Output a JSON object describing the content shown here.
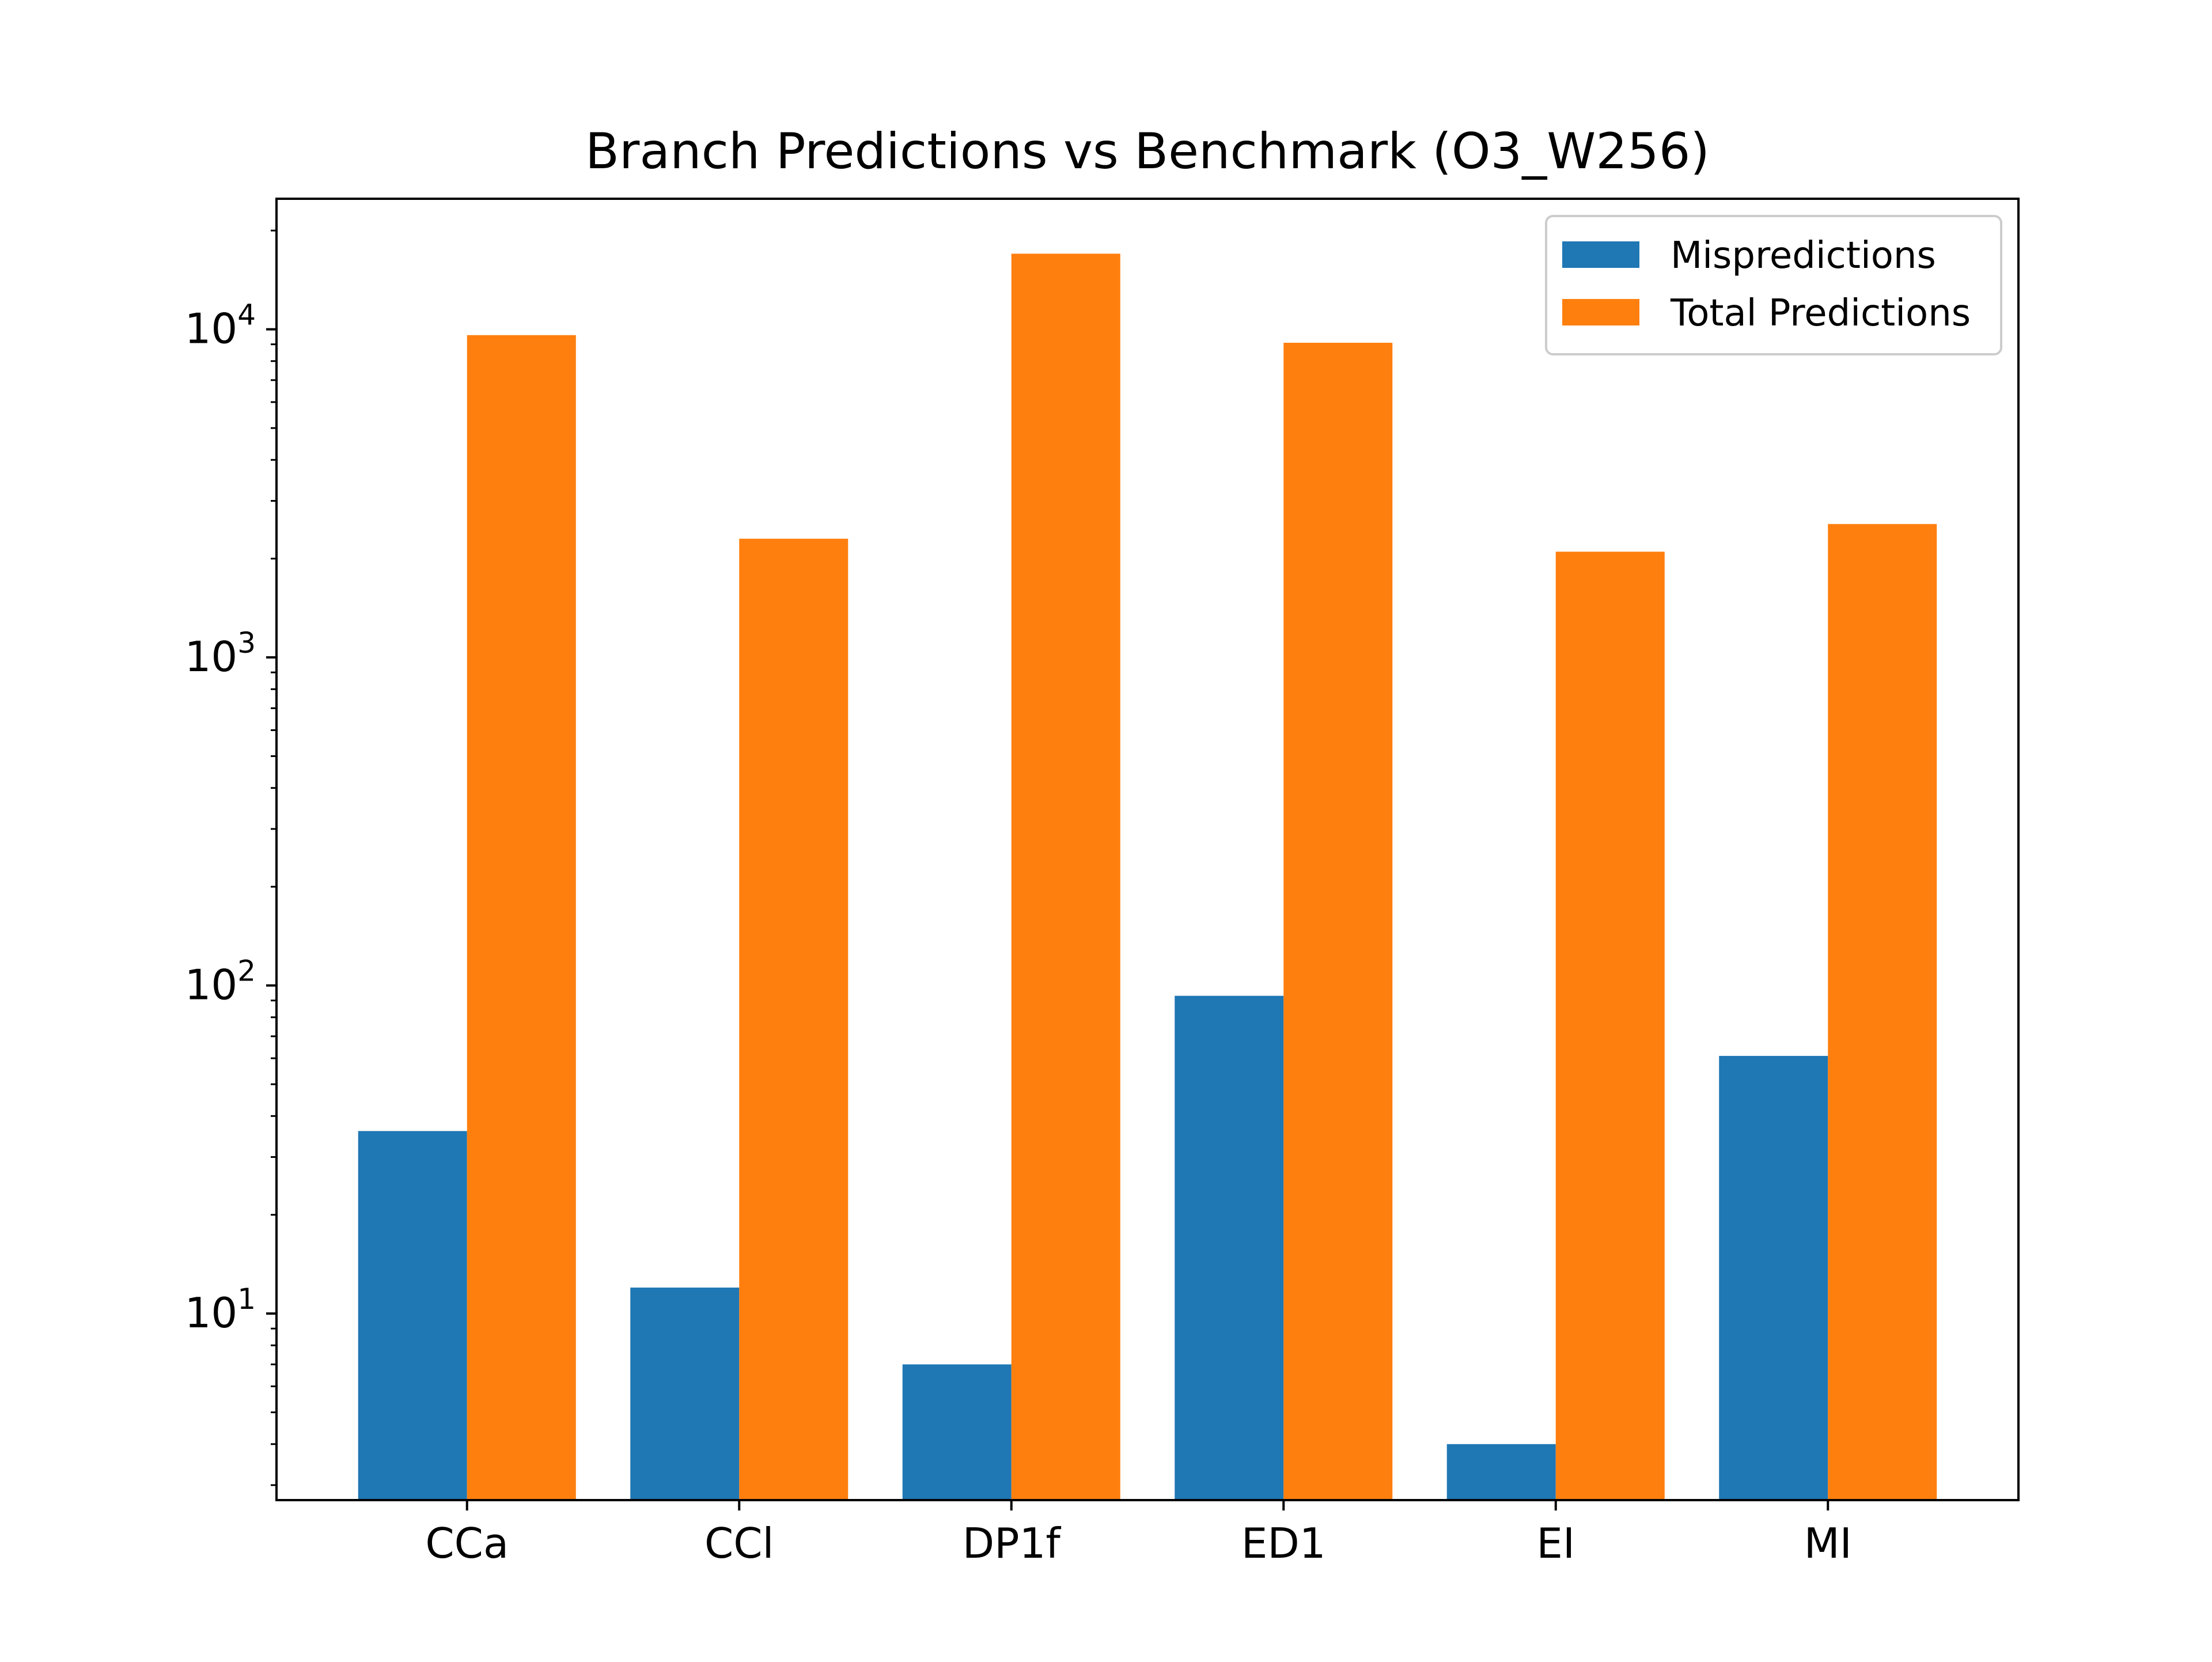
{
  "chart_data": {
    "type": "bar",
    "title": "Branch Predictions vs Benchmark (O3_W256)",
    "xlabel": "",
    "ylabel": "",
    "yscale": "log",
    "ylim": [
      2.7,
      25000
    ],
    "yticks": [
      {
        "value": 10,
        "base": "10",
        "exp": "1"
      },
      {
        "value": 100,
        "base": "10",
        "exp": "2"
      },
      {
        "value": 1000,
        "base": "10",
        "exp": "3"
      },
      {
        "value": 10000,
        "base": "10",
        "exp": "4"
      }
    ],
    "categories": [
      "CCa",
      "CCl",
      "DP1f",
      "ED1",
      "EI",
      "MI"
    ],
    "series": [
      {
        "name": "Mispredictions",
        "color": "#1f77b4",
        "values": [
          36,
          12,
          7,
          93,
          4,
          61
        ]
      },
      {
        "name": "Total Predictions",
        "color": "#ff7f0e",
        "values": [
          9600,
          2300,
          17000,
          9100,
          2100,
          2550
        ]
      }
    ],
    "legend": {
      "position": "top-right"
    },
    "grid": false
  }
}
